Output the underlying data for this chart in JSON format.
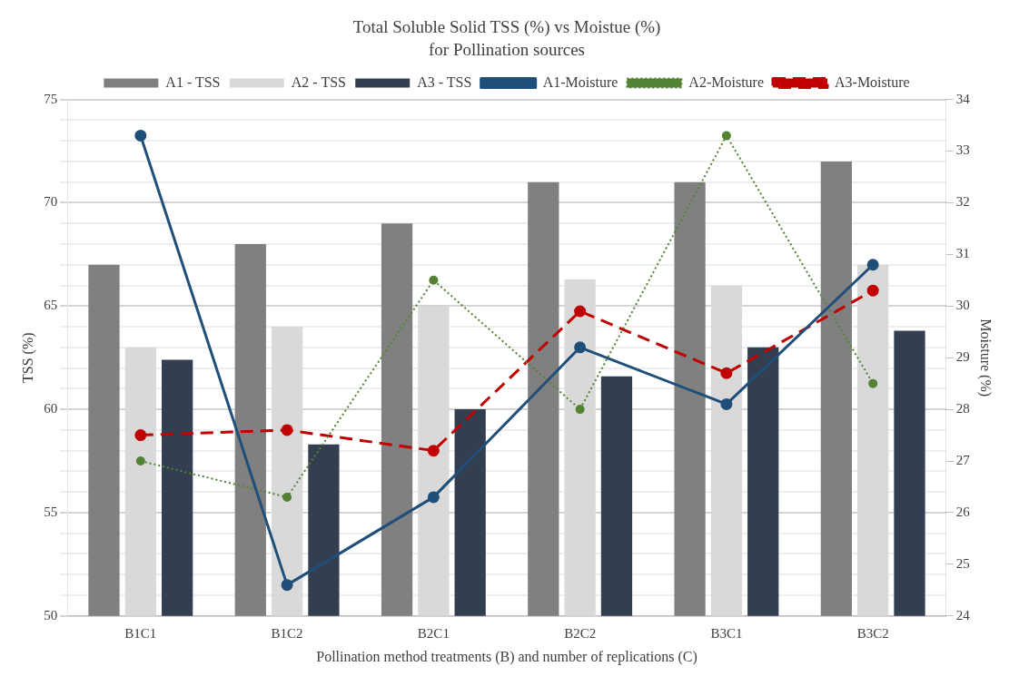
{
  "chart_data": {
    "type": "bar",
    "title": "Total Soluble Solid TSS (%) vs Moistue (%)",
    "subtitle": "for Pollination sources",
    "xlabel": "Pollination method treatments (B) and number of replications (C)",
    "ylabel": "TSS (%)",
    "y2label": "Moisture (%)",
    "categories": [
      "B1C1",
      "B1C2",
      "B2C1",
      "B2C2",
      "B3C1",
      "B3C2"
    ],
    "series": [
      {
        "name": "A1 - TSS",
        "color": "#808080",
        "values": [
          67,
          68,
          69,
          71,
          71,
          72
        ]
      },
      {
        "name": "A2 - TSS",
        "color": "#d9d9d9",
        "values": [
          63,
          64,
          65,
          66.3,
          66,
          67
        ]
      },
      {
        "name": "A3 - TSS",
        "color": "#333f50",
        "values": [
          62.4,
          58.3,
          60,
          61.6,
          63,
          63.8
        ]
      },
      {
        "name": "A1-Moisture",
        "type": "line",
        "axis": "y2",
        "color": "#1f4e79",
        "line_style": "solid",
        "values": [
          33.3,
          24.6,
          26.3,
          29.2,
          28.1,
          30.8
        ]
      },
      {
        "name": "A2-Moisture",
        "type": "line",
        "axis": "y2",
        "color": "#548235",
        "line_style": "dotted",
        "values": [
          27.0,
          26.3,
          30.5,
          28.0,
          33.3,
          28.5
        ]
      },
      {
        "name": "A3-Moisture",
        "type": "line",
        "axis": "y2",
        "color": "#c00000",
        "line_style": "dashed",
        "values": [
          27.5,
          27.6,
          27.2,
          29.9,
          28.7,
          30.3
        ]
      }
    ],
    "ylim": [
      50,
      75
    ],
    "yticks": [
      50,
      {
        "value": 51,
        "label": null
      },
      {
        "value": 52,
        "label": null
      },
      {
        "value": 53,
        "label": null
      },
      {
        "value": 54,
        "label": null
      },
      55,
      {
        "value": 56,
        "label": null
      },
      {
        "value": 57,
        "label": null
      },
      {
        "value": 58,
        "label": null
      },
      {
        "value": 59,
        "label": null
      },
      60,
      {
        "value": 61,
        "label": null
      },
      {
        "value": 62,
        "label": null
      },
      {
        "value": 63,
        "label": null
      },
      {
        "value": 64,
        "label": null
      },
      65,
      {
        "value": 66,
        "label": null
      },
      {
        "value": 67,
        "label": null
      },
      {
        "value": 68,
        "label": null
      },
      {
        "value": 69,
        "label": null
      },
      70,
      {
        "value": 71,
        "label": null
      },
      {
        "value": 72,
        "label": null
      },
      {
        "value": 73,
        "label": null
      },
      {
        "value": 74,
        "label": null
      },
      75
    ],
    "y2lim": [
      24,
      34
    ],
    "y2ticks": [
      24,
      25,
      26,
      27,
      28,
      29,
      30,
      31,
      32,
      33,
      34
    ],
    "grid": "y",
    "legend": "top",
    "marker": "circle"
  }
}
